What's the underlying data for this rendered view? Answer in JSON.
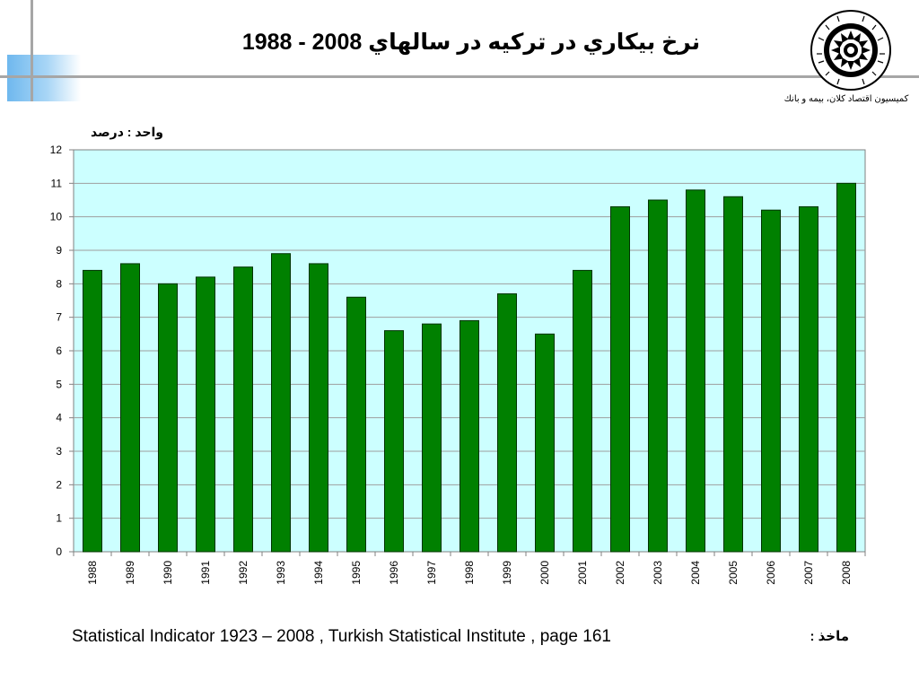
{
  "title": "نرخ بيكاري در تركيه در سالهاي 2008 - 1988",
  "logo": {
    "icon": "chamber-of-commerce-seal-icon",
    "text": "ISLAMIC CHAMBER OF COMMERCE INDUSTRY AND MINES",
    "caption": "كميسيون اقتصاد كلان، بيمه و بانك"
  },
  "unit_label": "واحد : درصد",
  "source": {
    "label": "ماخذ :",
    "text": "Statistical Indicator 1923 – 2008 , Turkish Statistical Institute , page 161"
  },
  "colors": {
    "bar_fill": "#008000",
    "bar_stroke": "#003300",
    "plot_background": "#ccffff",
    "grid": "#9e9e9e",
    "deco_blue": "#6fb8ee",
    "deco_gray": "#a6a6a6"
  },
  "chart_data": {
    "type": "bar",
    "categories": [
      "1988",
      "1989",
      "1990",
      "1991",
      "1992",
      "1993",
      "1994",
      "1995",
      "1996",
      "1997",
      "1998",
      "1999",
      "2000",
      "2001",
      "2002",
      "2003",
      "2004",
      "2005",
      "2006",
      "2007",
      "2008"
    ],
    "series": [
      {
        "values": [
          8.4,
          8.6,
          8.0,
          8.2,
          8.5,
          8.9,
          8.6,
          7.6,
          6.6,
          6.8,
          6.9,
          7.7,
          6.5,
          8.4,
          10.3,
          10.5,
          10.8,
          10.6,
          10.2,
          10.3,
          11.0
        ]
      }
    ],
    "ylim": [
      0,
      12
    ],
    "yticks": [
      0,
      1,
      2,
      3,
      4,
      5,
      6,
      7,
      8,
      9,
      10,
      11,
      12
    ],
    "grid": true,
    "legend": "none",
    "xtick_rotation": "vertical"
  }
}
